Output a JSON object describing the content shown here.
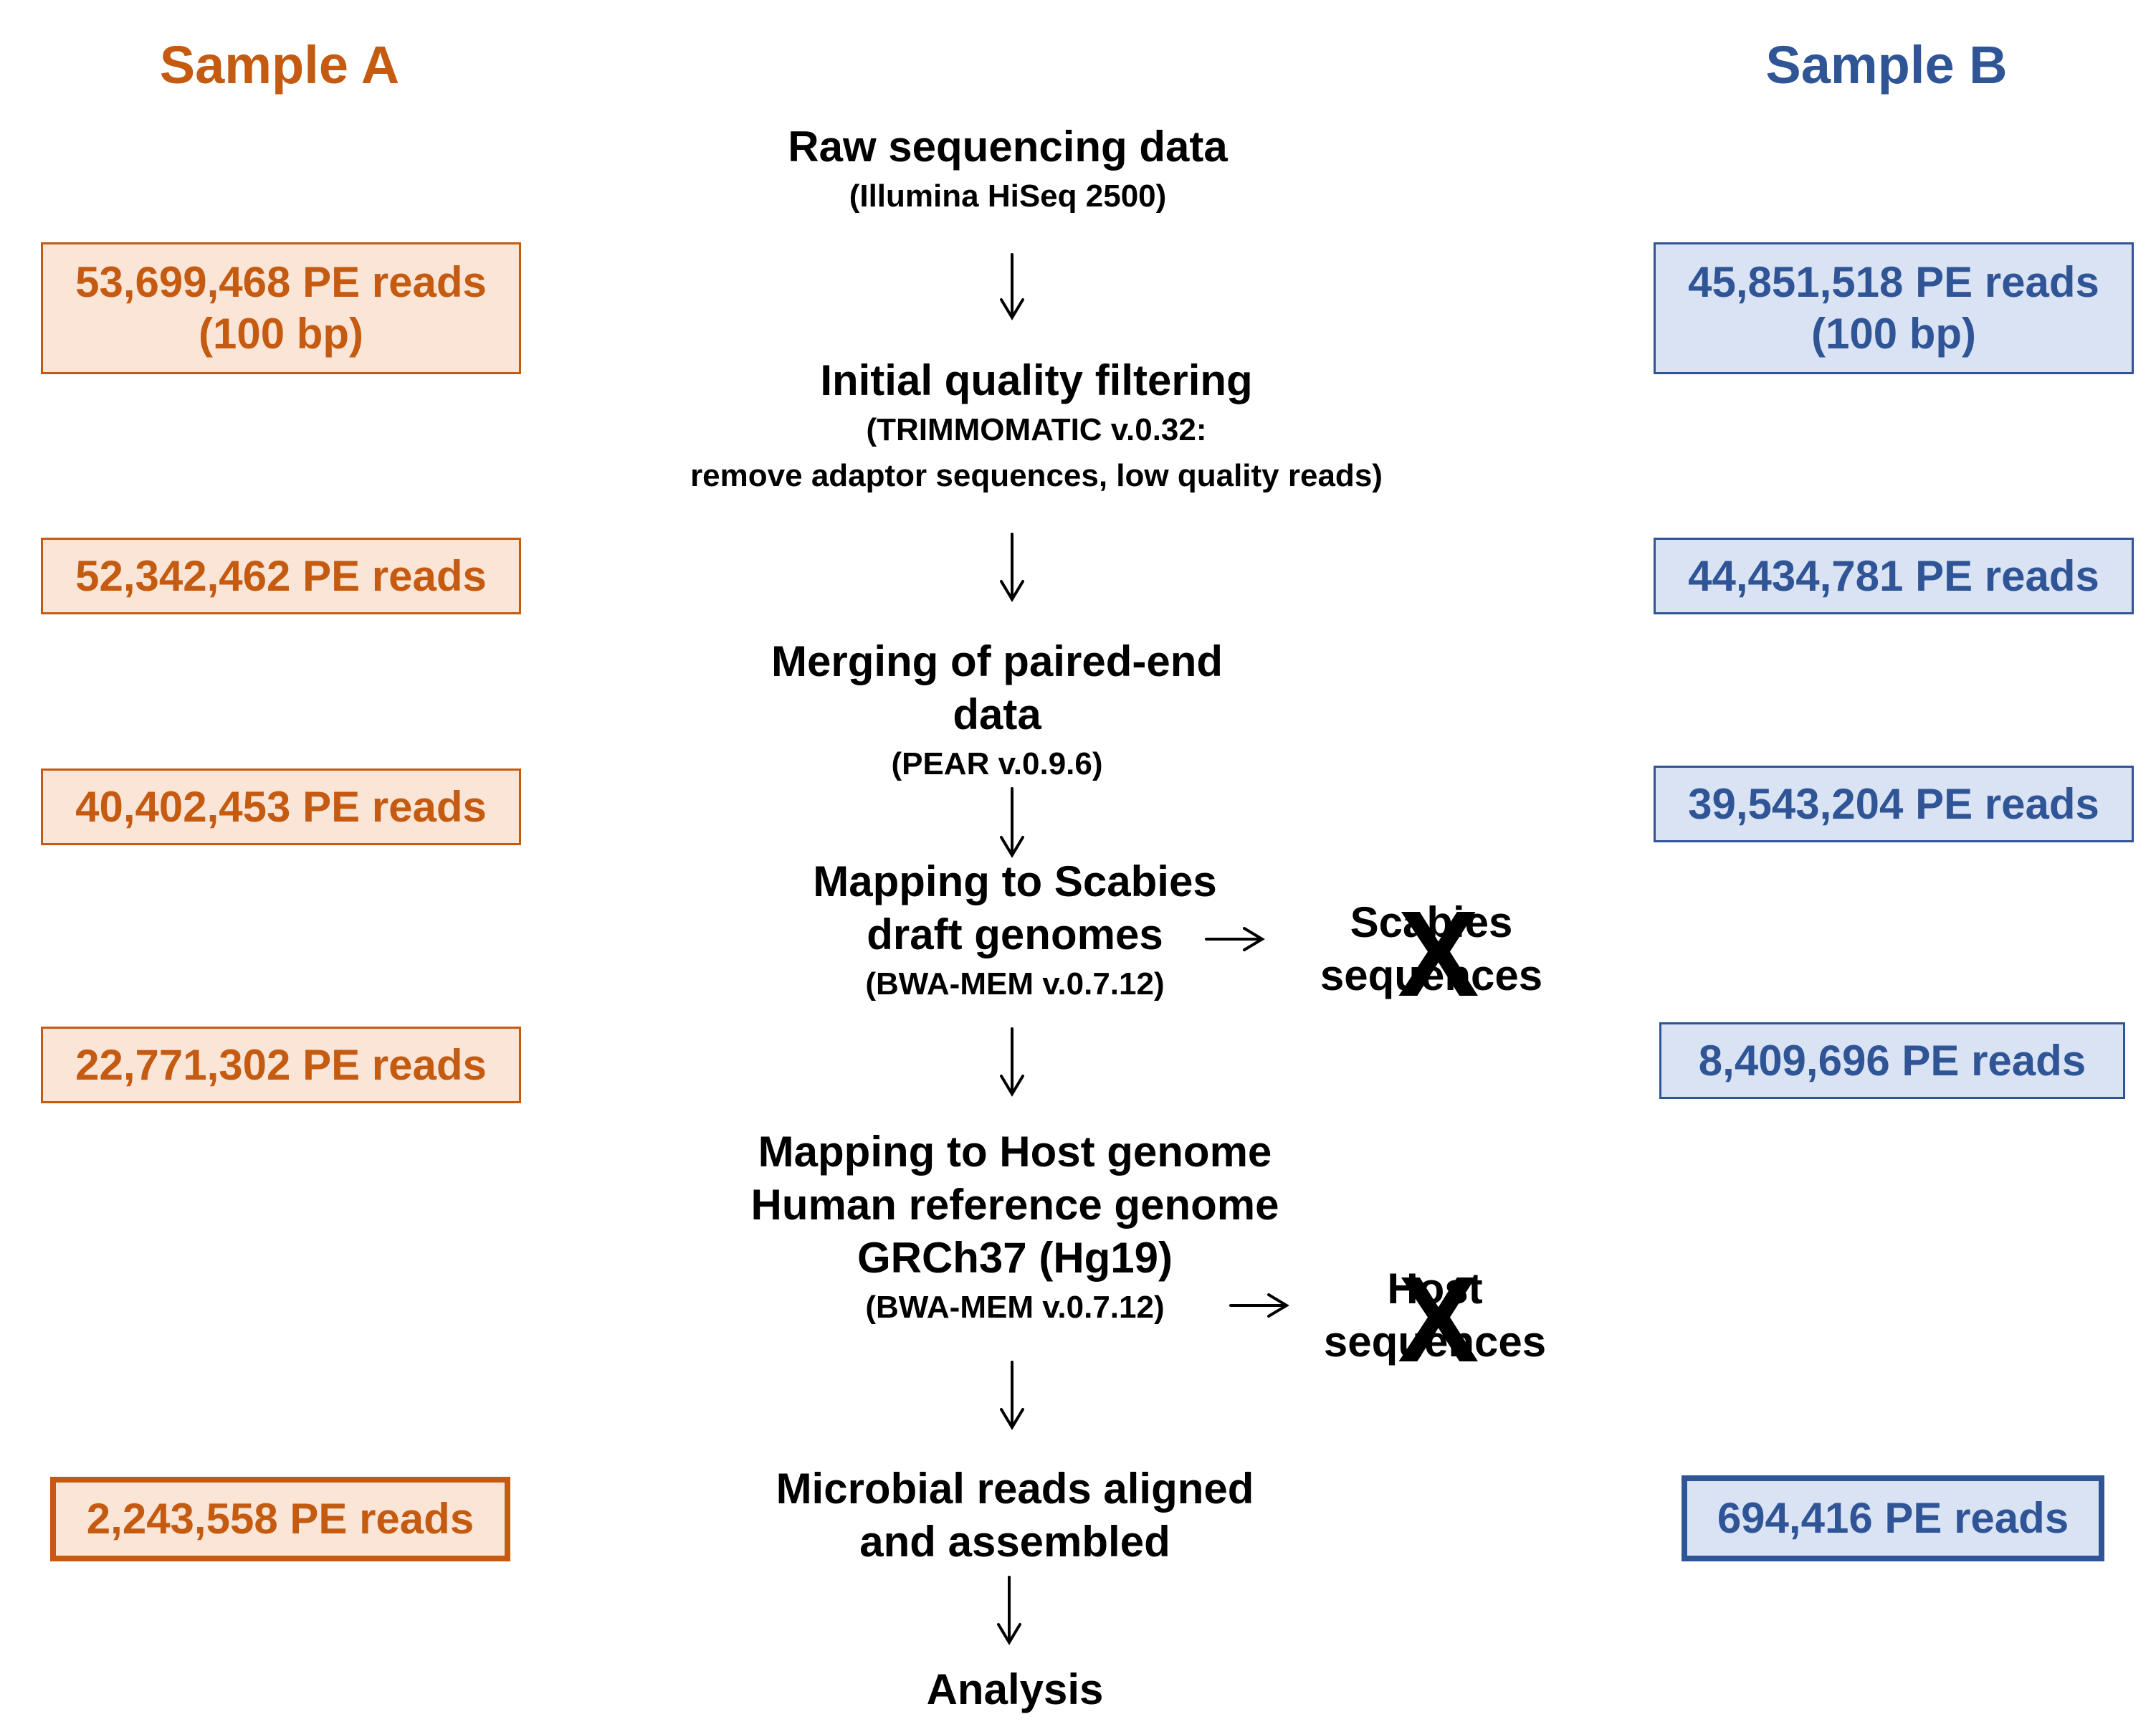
{
  "columns": {
    "sample_a": {
      "title": "Sample A",
      "color": "#C55A11",
      "fill": "#FBE5D6"
    },
    "sample_b": {
      "title": "Sample B",
      "color": "#2F5597",
      "fill": "#DAE3F3"
    }
  },
  "steps": {
    "raw": {
      "main": "Raw sequencing data",
      "sub": "(Illumina HiSeq 2500)"
    },
    "quality": {
      "main": "Initial quality filtering",
      "sub1": "(TRIMMOMATIC v.0.32:",
      "sub2": "remove adaptor sequences, low quality reads)"
    },
    "merging": {
      "main1": "Merging of paired-end",
      "main2": "data",
      "sub": "(PEAR v.0.9.6)"
    },
    "scabies": {
      "main1": "Mapping to Scabies",
      "main2": "draft genomes",
      "sub": "(BWA-MEM v.0.7.12)"
    },
    "host": {
      "main1": "Mapping to Host genome",
      "main2": "Human reference genome",
      "main3": "GRCh37 (Hg19)",
      "sub": "(BWA-MEM v.0.7.12)"
    },
    "microbial": {
      "main1": "Microbial reads aligned",
      "main2": "and assembled"
    },
    "analysis": {
      "main": "Analysis"
    }
  },
  "removed": {
    "scabies": {
      "line1": "Scabies",
      "line2": "sequences",
      "mark": "X"
    },
    "host": {
      "line1": "Host",
      "line2": "sequences",
      "mark": "X"
    }
  },
  "sample_a_counts": [
    {
      "line1": "53,699,468 PE reads",
      "line2": "(100 bp)"
    },
    {
      "line1": "52,342,462 PE reads"
    },
    {
      "line1": "40,402,453 PE reads"
    },
    {
      "line1": "22,771,302 PE reads"
    },
    {
      "line1": "2,243,558 PE reads"
    }
  ],
  "sample_b_counts": [
    {
      "line1": "45,851,518 PE reads",
      "line2": "(100 bp)"
    },
    {
      "line1": "44,434,781 PE reads"
    },
    {
      "line1": "39,543,204 PE reads"
    },
    {
      "line1": "8,409,696 PE reads"
    },
    {
      "line1": "694,416 PE reads"
    }
  ]
}
